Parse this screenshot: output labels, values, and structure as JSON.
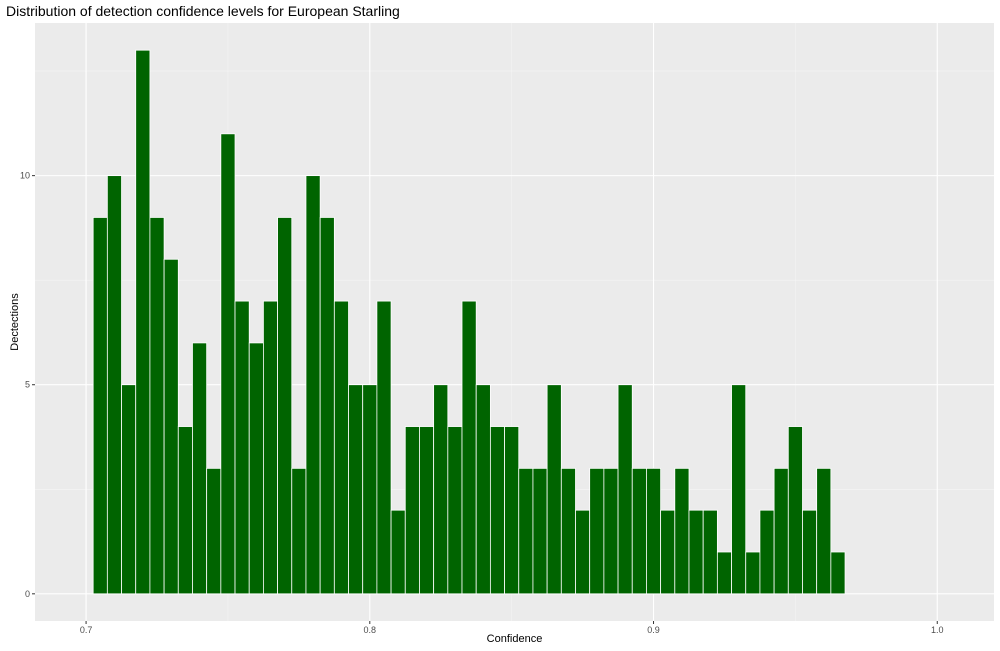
{
  "chart_data": {
    "type": "bar",
    "title": "Distribution of detection confidence levels for European Starling",
    "xlabel": "Confidence",
    "ylabel": "Dectections",
    "xlim": [
      0.682,
      1.02
    ],
    "ylim": [
      -0.65,
      13.65
    ],
    "x_ticks": [
      0.7,
      0.8,
      0.9,
      1.0
    ],
    "x_tick_labels": [
      "0.7",
      "0.8",
      "0.9",
      "1.0"
    ],
    "y_ticks": [
      0,
      5,
      10
    ],
    "y_tick_labels": [
      "0",
      "5",
      "10"
    ],
    "grid": true,
    "bin_width": 0.005,
    "bar_color": "#006400",
    "panel_background": "#ebebeb",
    "x": [
      0.705,
      0.71,
      0.715,
      0.72,
      0.725,
      0.73,
      0.735,
      0.74,
      0.745,
      0.75,
      0.755,
      0.76,
      0.765,
      0.77,
      0.775,
      0.78,
      0.785,
      0.79,
      0.795,
      0.8,
      0.805,
      0.81,
      0.815,
      0.82,
      0.825,
      0.83,
      0.835,
      0.84,
      0.845,
      0.85,
      0.855,
      0.86,
      0.865,
      0.87,
      0.875,
      0.88,
      0.885,
      0.89,
      0.895,
      0.9,
      0.905,
      0.91,
      0.915,
      0.92,
      0.925,
      0.93,
      0.935,
      0.94,
      0.945,
      0.95,
      0.955,
      0.96,
      0.965
    ],
    "values": [
      9,
      10,
      5,
      13,
      9,
      8,
      4,
      6,
      3,
      11,
      7,
      6,
      7,
      9,
      3,
      10,
      9,
      7,
      5,
      5,
      7,
      2,
      4,
      4,
      5,
      4,
      7,
      5,
      4,
      4,
      3,
      3,
      5,
      3,
      2,
      3,
      3,
      5,
      3,
      3,
      2,
      3,
      2,
      2,
      1,
      5,
      1,
      2,
      3,
      4,
      2,
      3,
      1
    ]
  }
}
